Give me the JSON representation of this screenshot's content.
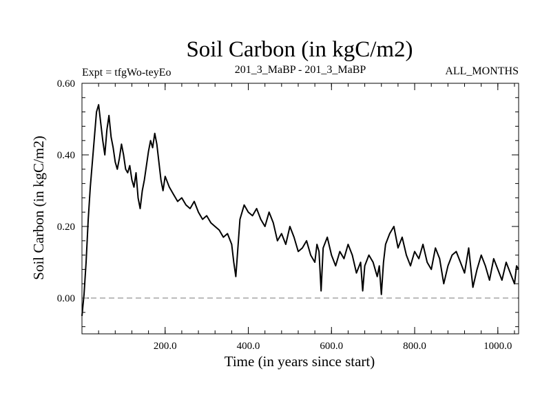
{
  "chart_data": {
    "type": "line",
    "title": "Soil Carbon (in kgC/m2)",
    "subtitle_left": "Expt = tfgWo-teyEo",
    "subtitle_center": "201_3_MaBP - 201_3_MaBP",
    "subtitle_right": "ALL_MONTHS",
    "xlabel": "Time (in years since start)",
    "ylabel": "Soil Carbon (in kgC/m2)",
    "xlim": [
      0,
      1050
    ],
    "ylim": [
      -0.1,
      0.6
    ],
    "x_ticks": [
      {
        "value": 200,
        "label": "200.0"
      },
      {
        "value": 400,
        "label": "400.0"
      },
      {
        "value": 600,
        "label": "600.0"
      },
      {
        "value": 800,
        "label": "800.0"
      },
      {
        "value": 1000,
        "label": "1000.0"
      }
    ],
    "y_ticks": [
      {
        "value": 0.0,
        "label": "0.00"
      },
      {
        "value": 0.2,
        "label": "0.20"
      },
      {
        "value": 0.4,
        "label": "0.40"
      },
      {
        "value": 0.6,
        "label": "0.60"
      }
    ],
    "zero_line": {
      "value": 0.0,
      "style": "dashed"
    },
    "series": [
      {
        "name": "Soil Carbon",
        "color": "#000000",
        "x": [
          0,
          5,
          10,
          15,
          20,
          25,
          30,
          35,
          40,
          45,
          50,
          55,
          60,
          65,
          70,
          75,
          80,
          85,
          90,
          95,
          100,
          105,
          110,
          115,
          120,
          125,
          130,
          135,
          140,
          145,
          150,
          155,
          160,
          165,
          170,
          175,
          180,
          185,
          190,
          195,
          200,
          210,
          220,
          230,
          240,
          250,
          260,
          270,
          280,
          290,
          300,
          310,
          320,
          330,
          340,
          350,
          360,
          365,
          370,
          375,
          380,
          390,
          400,
          410,
          420,
          430,
          440,
          450,
          460,
          470,
          480,
          490,
          500,
          510,
          520,
          530,
          540,
          550,
          560,
          565,
          570,
          575,
          580,
          590,
          600,
          610,
          620,
          630,
          640,
          650,
          660,
          670,
          675,
          680,
          690,
          700,
          710,
          715,
          720,
          725,
          730,
          740,
          750,
          760,
          770,
          780,
          790,
          800,
          810,
          820,
          830,
          840,
          850,
          860,
          870,
          880,
          890,
          900,
          910,
          920,
          930,
          940,
          950,
          960,
          970,
          980,
          990,
          1000,
          1010,
          1020,
          1030,
          1040,
          1045,
          1050
        ],
        "values": [
          -0.05,
          0.01,
          0.1,
          0.22,
          0.31,
          0.38,
          0.45,
          0.52,
          0.54,
          0.49,
          0.44,
          0.4,
          0.47,
          0.51,
          0.45,
          0.42,
          0.38,
          0.36,
          0.39,
          0.43,
          0.4,
          0.36,
          0.35,
          0.37,
          0.33,
          0.31,
          0.35,
          0.28,
          0.25,
          0.3,
          0.33,
          0.37,
          0.41,
          0.44,
          0.42,
          0.46,
          0.43,
          0.38,
          0.33,
          0.3,
          0.34,
          0.31,
          0.29,
          0.27,
          0.28,
          0.26,
          0.25,
          0.27,
          0.24,
          0.22,
          0.23,
          0.21,
          0.2,
          0.19,
          0.17,
          0.18,
          0.15,
          0.1,
          0.06,
          0.14,
          0.22,
          0.26,
          0.24,
          0.23,
          0.25,
          0.22,
          0.2,
          0.24,
          0.21,
          0.16,
          0.18,
          0.15,
          0.2,
          0.17,
          0.13,
          0.14,
          0.16,
          0.12,
          0.1,
          0.15,
          0.13,
          0.02,
          0.14,
          0.17,
          0.12,
          0.09,
          0.13,
          0.11,
          0.15,
          0.12,
          0.07,
          0.1,
          0.02,
          0.09,
          0.12,
          0.1,
          0.06,
          0.09,
          0.01,
          0.1,
          0.15,
          0.18,
          0.2,
          0.14,
          0.17,
          0.12,
          0.09,
          0.13,
          0.11,
          0.15,
          0.1,
          0.08,
          0.14,
          0.11,
          0.04,
          0.09,
          0.12,
          0.13,
          0.1,
          0.07,
          0.14,
          0.03,
          0.08,
          0.12,
          0.09,
          0.05,
          0.11,
          0.08,
          0.05,
          0.1,
          0.07,
          0.04,
          0.09,
          0.08
        ]
      }
    ]
  }
}
